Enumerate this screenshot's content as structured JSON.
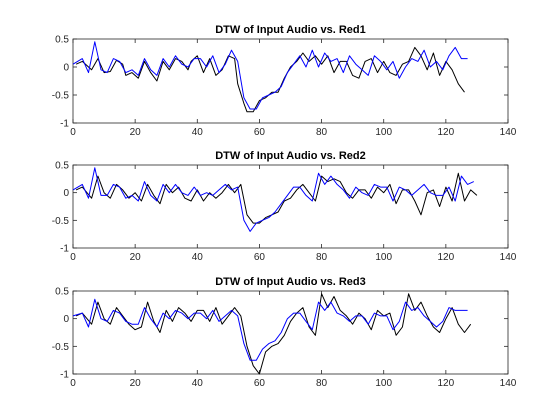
{
  "chart_data": [
    {
      "type": "line",
      "title": "DTW of Input Audio vs. Red1",
      "xlim": [
        0,
        140
      ],
      "ylim": [
        -1,
        0.5
      ],
      "xticks": [
        0,
        20,
        40,
        60,
        80,
        100,
        120,
        140
      ],
      "yticks": [
        -1,
        -0.5,
        0,
        0.5
      ],
      "xtick_labels": [
        "0",
        "20",
        "40",
        "60",
        "80",
        "100",
        "120",
        "140"
      ],
      "ytick_labels": [
        "-1",
        "-0.5",
        "0",
        "0.5"
      ],
      "grid": false,
      "series": [
        {
          "color": "#000000",
          "x": [
            1,
            3,
            6,
            8,
            10,
            12,
            14,
            16,
            17,
            19,
            21,
            23,
            25,
            27,
            29,
            31,
            33,
            35,
            37,
            38,
            40,
            42,
            44,
            46,
            48,
            50,
            52,
            53,
            55,
            56,
            58,
            60,
            62,
            64,
            66,
            68,
            70,
            72,
            74,
            76,
            78,
            80,
            82,
            84,
            86,
            88,
            90,
            92,
            94,
            96,
            98,
            100,
            102,
            104,
            106,
            108,
            110,
            112,
            114,
            116,
            118,
            120,
            122,
            124,
            126
          ],
          "y": [
            0.05,
            0.1,
            -0.05,
            0.15,
            -0.1,
            -0.08,
            0.12,
            0.05,
            -0.15,
            -0.1,
            -0.2,
            0.1,
            -0.1,
            -0.25,
            0.1,
            -0.05,
            0.15,
            0.1,
            -0.05,
            0.1,
            0.2,
            -0.1,
            0.15,
            -0.15,
            -0.05,
            0.2,
            0.15,
            -0.3,
            -0.65,
            -0.8,
            -0.8,
            -0.6,
            -0.55,
            -0.45,
            -0.45,
            -0.2,
            0.0,
            0.1,
            0.25,
            0.1,
            0.2,
            0.05,
            0.2,
            -0.1,
            0.1,
            0.1,
            -0.15,
            -0.2,
            0.1,
            0.15,
            -0.1,
            0.1,
            -0.1,
            -0.15,
            0.05,
            0.1,
            0.35,
            0.2,
            -0.05,
            0.25,
            -0.15,
            0.1,
            -0.05,
            -0.3,
            -0.45
          ]
        },
        {
          "color": "#0000ff",
          "x": [
            0,
            3,
            5,
            7,
            9,
            11,
            13,
            15,
            17,
            19,
            21,
            23,
            25,
            27,
            29,
            31,
            33,
            35,
            37,
            39,
            41,
            43,
            45,
            47,
            49,
            51,
            53,
            55,
            57,
            59,
            61,
            63,
            65,
            67,
            69,
            71,
            73,
            75,
            77,
            79,
            81,
            83,
            85,
            87,
            89,
            91,
            93,
            95,
            97,
            99,
            101,
            103,
            105,
            107,
            109,
            111,
            113,
            115,
            117,
            119,
            121,
            123,
            125,
            127
          ],
          "y": [
            0.05,
            0.15,
            -0.1,
            0.45,
            -0.05,
            -0.1,
            0.15,
            0.1,
            -0.1,
            -0.05,
            -0.15,
            0.15,
            -0.05,
            -0.15,
            0.15,
            0.0,
            0.2,
            0.05,
            0.0,
            0.15,
            0.15,
            0.0,
            0.2,
            -0.1,
            0.05,
            0.3,
            0.1,
            -0.55,
            -0.75,
            -0.75,
            -0.55,
            -0.5,
            -0.45,
            -0.35,
            -0.1,
            0.05,
            0.2,
            0.0,
            0.3,
            0.0,
            0.25,
            0.1,
            0.15,
            -0.1,
            0.2,
            0.05,
            -0.05,
            -0.15,
            0.2,
            0.1,
            -0.05,
            0.1,
            -0.2,
            0.0,
            0.15,
            0.1,
            0.3,
            0.0,
            0.1,
            -0.05,
            0.2,
            0.35,
            0.15,
            0.15
          ]
        }
      ]
    },
    {
      "type": "line",
      "title": "DTW of Input Audio vs. Red2",
      "xlim": [
        0,
        140
      ],
      "ylim": [
        -1,
        0.5
      ],
      "xticks": [
        0,
        20,
        40,
        60,
        80,
        100,
        120,
        140
      ],
      "yticks": [
        -1,
        -0.5,
        0,
        0.5
      ],
      "xtick_labels": [
        "0",
        "20",
        "40",
        "60",
        "80",
        "100",
        "120",
        "140"
      ],
      "ytick_labels": [
        "-1",
        "-0.5",
        "0",
        "0.5"
      ],
      "grid": false,
      "series": [
        {
          "color": "#000000",
          "x": [
            1,
            3,
            6,
            8,
            10,
            12,
            14,
            16,
            18,
            20,
            22,
            24,
            26,
            28,
            30,
            32,
            34,
            36,
            38,
            40,
            42,
            44,
            46,
            48,
            50,
            52,
            54,
            56,
            58,
            60,
            62,
            64,
            66,
            68,
            70,
            72,
            74,
            76,
            78,
            80,
            82,
            84,
            86,
            88,
            90,
            92,
            94,
            96,
            98,
            100,
            102,
            104,
            106,
            108,
            110,
            112,
            114,
            116,
            118,
            120,
            122,
            124,
            126,
            128,
            130
          ],
          "y": [
            0.05,
            0.1,
            -0.1,
            0.3,
            0.0,
            -0.1,
            0.15,
            0.05,
            -0.1,
            0.0,
            -0.15,
            0.15,
            -0.05,
            -0.2,
            0.15,
            0.0,
            0.1,
            -0.1,
            -0.15,
            0.05,
            -0.15,
            0.0,
            -0.1,
            0.0,
            0.15,
            0.0,
            0.15,
            -0.4,
            -0.55,
            -0.55,
            -0.45,
            -0.4,
            -0.35,
            -0.15,
            -0.1,
            0.05,
            0.15,
            0.0,
            -0.15,
            0.3,
            0.2,
            0.25,
            0.2,
            0.0,
            -0.1,
            0.05,
            0.05,
            -0.1,
            0.1,
            0.0,
            0.15,
            -0.2,
            0.05,
            0.05,
            -0.15,
            -0.4,
            0.0,
            0.05,
            -0.25,
            0.1,
            -0.15,
            0.35,
            -0.15,
            0.05,
            -0.05
          ]
        },
        {
          "color": "#0000ff",
          "x": [
            0,
            3,
            5,
            7,
            9,
            11,
            13,
            15,
            17,
            19,
            21,
            23,
            25,
            27,
            29,
            31,
            33,
            35,
            37,
            39,
            41,
            43,
            45,
            47,
            49,
            51,
            53,
            55,
            57,
            59,
            61,
            63,
            65,
            67,
            69,
            71,
            73,
            75,
            77,
            79,
            81,
            83,
            85,
            87,
            89,
            91,
            93,
            95,
            97,
            99,
            101,
            103,
            105,
            107,
            109,
            111,
            113,
            115,
            117,
            119,
            121,
            123,
            125,
            127,
            129
          ],
          "y": [
            0.05,
            0.15,
            -0.1,
            0.45,
            -0.05,
            -0.05,
            0.15,
            0.1,
            -0.1,
            -0.05,
            -0.15,
            0.2,
            -0.05,
            -0.15,
            0.15,
            0.0,
            0.15,
            0.0,
            -0.05,
            0.1,
            -0.05,
            0.0,
            -0.05,
            0.05,
            0.15,
            0.05,
            0.1,
            -0.5,
            -0.7,
            -0.55,
            -0.5,
            -0.45,
            -0.35,
            -0.2,
            -0.05,
            0.1,
            0.1,
            -0.05,
            -0.15,
            0.35,
            0.15,
            0.3,
            0.15,
            0.05,
            -0.1,
            0.1,
            0.0,
            -0.05,
            0.15,
            0.1,
            0.1,
            -0.15,
            0.1,
            0.05,
            -0.05,
            0.05,
            0.15,
            0.0,
            -0.05,
            -0.05,
            0.1,
            -0.15,
            0.3,
            0.15,
            0.2
          ]
        }
      ]
    },
    {
      "type": "line",
      "title": "DTW of Input Audio vs. Red3",
      "xlim": [
        0,
        140
      ],
      "ylim": [
        -1,
        0.5
      ],
      "xticks": [
        0,
        20,
        40,
        60,
        80,
        100,
        120,
        140
      ],
      "yticks": [
        -1,
        -0.5,
        0,
        0.5
      ],
      "xtick_labels": [
        "0",
        "20",
        "40",
        "60",
        "80",
        "100",
        "120",
        "140"
      ],
      "ytick_labels": [
        "-1",
        "-0.5",
        "0",
        "0.5"
      ],
      "grid": false,
      "series": [
        {
          "color": "#000000",
          "x": [
            1,
            3,
            6,
            8,
            10,
            12,
            14,
            16,
            18,
            20,
            22,
            24,
            26,
            28,
            30,
            32,
            34,
            36,
            38,
            40,
            42,
            44,
            46,
            48,
            50,
            52,
            54,
            56,
            58,
            60,
            62,
            64,
            66,
            68,
            70,
            72,
            74,
            76,
            78,
            80,
            82,
            84,
            86,
            88,
            90,
            92,
            94,
            96,
            98,
            100,
            102,
            104,
            106,
            108,
            110,
            112,
            114,
            116,
            118,
            120,
            122,
            124,
            126,
            128
          ],
          "y": [
            0.05,
            0.1,
            -0.1,
            0.3,
            0.0,
            -0.1,
            0.2,
            0.05,
            -0.1,
            -0.2,
            -0.15,
            0.3,
            -0.05,
            -0.25,
            0.15,
            -0.05,
            0.2,
            0.1,
            -0.05,
            0.15,
            0.15,
            -0.05,
            0.2,
            -0.1,
            0.05,
            0.2,
            0.05,
            -0.5,
            -0.85,
            -1.0,
            -0.6,
            -0.5,
            -0.45,
            -0.3,
            -0.05,
            0.1,
            0.2,
            -0.15,
            -0.3,
            0.45,
            0.2,
            0.4,
            0.15,
            0.05,
            -0.1,
            0.1,
            0.0,
            -0.2,
            0.15,
            0.05,
            0.1,
            -0.3,
            -0.15,
            0.45,
            0.15,
            0.3,
            0.05,
            -0.15,
            -0.25,
            0.0,
            0.2,
            -0.1,
            -0.25,
            -0.1
          ]
        },
        {
          "color": "#0000ff",
          "x": [
            0,
            3,
            5,
            7,
            9,
            11,
            13,
            15,
            17,
            19,
            21,
            23,
            25,
            27,
            29,
            31,
            33,
            35,
            37,
            39,
            41,
            43,
            45,
            47,
            49,
            51,
            53,
            55,
            57,
            59,
            61,
            63,
            65,
            67,
            69,
            71,
            73,
            75,
            77,
            79,
            81,
            83,
            85,
            87,
            89,
            91,
            93,
            95,
            97,
            99,
            101,
            103,
            105,
            107,
            109,
            111,
            113,
            115,
            117,
            119,
            121,
            123,
            125,
            127
          ],
          "y": [
            0.05,
            0.1,
            -0.15,
            0.35,
            0.0,
            -0.05,
            0.15,
            0.1,
            -0.05,
            -0.1,
            -0.1,
            0.2,
            0.0,
            -0.15,
            0.1,
            0.0,
            0.15,
            0.1,
            0.0,
            0.1,
            0.1,
            0.0,
            0.15,
            -0.05,
            0.05,
            0.15,
            0.05,
            -0.45,
            -0.75,
            -0.75,
            -0.55,
            -0.45,
            -0.4,
            -0.25,
            0.0,
            0.1,
            0.1,
            -0.05,
            -0.2,
            0.3,
            0.15,
            0.3,
            0.1,
            0.05,
            -0.05,
            0.05,
            0.05,
            -0.1,
            0.1,
            0.05,
            0.05,
            -0.2,
            -0.05,
            0.3,
            0.15,
            0.2,
            0.05,
            -0.05,
            -0.15,
            -0.05,
            0.2,
            0.15,
            0.15,
            0.15
          ]
        }
      ]
    }
  ]
}
